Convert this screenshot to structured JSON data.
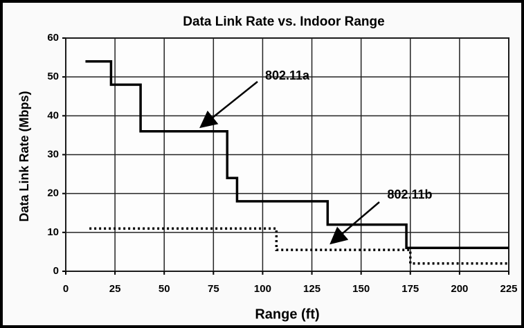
{
  "chart_data": {
    "type": "line",
    "title": "Data Link Rate vs. Indoor Range",
    "x_label": "Range (ft)",
    "y_label": "Data Link Rate (Mbps)",
    "xlim": [
      0,
      225
    ],
    "xticks": [
      0,
      25,
      50,
      75,
      100,
      125,
      150,
      175,
      200,
      225
    ],
    "ylim": [
      0,
      60
    ],
    "yticks": [
      0,
      10,
      20,
      30,
      40,
      50,
      60
    ],
    "grid": true,
    "series": [
      {
        "name": "802.11a",
        "color": "#000000",
        "style": "solid",
        "x": [
          10,
          23,
          23,
          38,
          38,
          82,
          82,
          87,
          87,
          133,
          133,
          173,
          173,
          225
        ],
        "values": [
          54,
          54,
          48,
          48,
          36,
          36,
          24,
          24,
          18,
          18,
          12,
          12,
          6,
          6
        ]
      },
      {
        "name": "802.11b",
        "color": "#000000",
        "style": "dotted",
        "x": [
          12,
          107,
          107,
          175,
          175,
          225
        ],
        "values": [
          11,
          11,
          5.5,
          5.5,
          2,
          2
        ]
      }
    ]
  }
}
